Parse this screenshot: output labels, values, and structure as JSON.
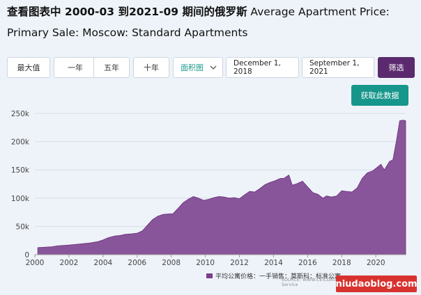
{
  "title": {
    "part_cn": "查看图表中 ",
    "range": "2000-03 到2021-09 期间的俄罗斯",
    "part_en": " Average Apartment Price: Primary Sale: Moscow: Standard Apartments"
  },
  "controls": {
    "max": "最大值",
    "one_year": "一年",
    "five_year": "五年",
    "ten_year": "十年",
    "chart_type": "面积图",
    "start_date": "December 1, 2018",
    "end_date": "September 1, 2021",
    "filter": "筛选",
    "fetch": "获取此数据"
  },
  "legend": {
    "label": "平均公寓价格：一手销售：莫斯科：标准公寓"
  },
  "source": "SOURCE: WWW.CEICDATA.COM | Federal State Statistics Service",
  "watermark": "niudaoblog.com",
  "colors": {
    "area": "#7b3f8c",
    "filter_button": "#5b2a6e",
    "fetch_button": "#17968b"
  },
  "chart_data": {
    "type": "area",
    "title": "查看图表中 2000-03 到2021-09 期间的俄罗斯 Average Apartment Price: Primary Sale: Moscow: Standard Apartments",
    "series": [
      {
        "name": "平均公寓价格：一手销售：莫斯科：标准公寓",
        "x": [
          2000.17,
          2000.5,
          2001.0,
          2001.3,
          2001.5,
          2002.0,
          2002.5,
          2003.0,
          2003.3,
          2003.7,
          2004.0,
          2004.3,
          2004.7,
          2005.0,
          2005.3,
          2005.7,
          2006.0,
          2006.3,
          2006.6,
          2006.9,
          2007.2,
          2007.5,
          2007.8,
          2008.1,
          2008.4,
          2008.7,
          2009.0,
          2009.3,
          2009.6,
          2009.9,
          2010.2,
          2010.5,
          2010.8,
          2011.1,
          2011.4,
          2011.7,
          2012.0,
          2012.3,
          2012.6,
          2012.9,
          2013.2,
          2013.5,
          2013.8,
          2014.1,
          2014.4,
          2014.6,
          2014.9,
          2015.1,
          2015.4,
          2015.7,
          2016.0,
          2016.3,
          2016.6,
          2016.9,
          2017.1,
          2017.4,
          2017.7,
          2018.0,
          2018.3,
          2018.6,
          2018.9,
          2019.2,
          2019.5,
          2019.8,
          2020.1,
          2020.3,
          2020.5,
          2020.8,
          2021.0,
          2021.2,
          2021.4,
          2021.6,
          2021.75
        ],
        "values": [
          12500,
          13000,
          14000,
          15500,
          16000,
          17000,
          18500,
          20000,
          21000,
          23000,
          26000,
          30000,
          33000,
          34000,
          36000,
          37000,
          38000,
          42000,
          52000,
          62000,
          68000,
          71000,
          72000,
          72500,
          82000,
          92000,
          98000,
          103000,
          100000,
          96000,
          98000,
          101000,
          103000,
          102000,
          100000,
          101000,
          99000,
          106000,
          112000,
          111000,
          117000,
          124000,
          128000,
          131000,
          135000,
          135000,
          141000,
          123000,
          126000,
          130000,
          120000,
          110000,
          107000,
          100000,
          104000,
          102000,
          104000,
          113000,
          112000,
          111000,
          118000,
          135000,
          145000,
          148000,
          155000,
          160000,
          150000,
          165000,
          168000,
          200000,
          237000,
          238000,
          237000
        ]
      }
    ],
    "xlim": [
      2000,
      2021.75
    ],
    "ylim": [
      0,
      250000
    ],
    "x_ticks": [
      2000,
      2002,
      2004,
      2006,
      2008,
      2010,
      2012,
      2014,
      2016,
      2018,
      2020
    ],
    "y_ticks": [
      0,
      50000,
      100000,
      150000,
      200000,
      250000
    ],
    "y_tick_labels": [
      "0",
      "50k",
      "100k",
      "150k",
      "200k",
      "250k"
    ],
    "grid": true,
    "legend_position": "bottom"
  }
}
